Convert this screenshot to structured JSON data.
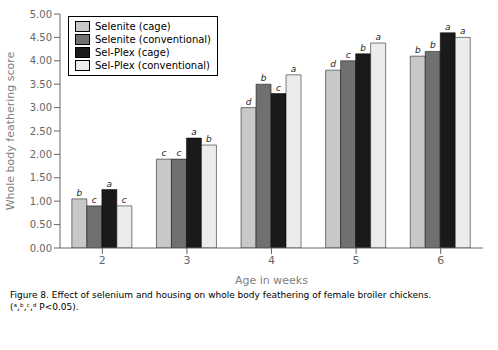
{
  "chart_data": {
    "type": "bar",
    "categories": [
      "2",
      "3",
      "4",
      "5",
      "6"
    ],
    "series": [
      {
        "name": "Selenite (cage)",
        "color": "#c8c8c8",
        "values": [
          1.05,
          1.9,
          3.0,
          3.8,
          4.1
        ],
        "annotations": [
          "b",
          "c",
          "d",
          "d",
          "b"
        ]
      },
      {
        "name": "Selenite (conventional)",
        "color": "#707070",
        "values": [
          0.9,
          1.9,
          3.5,
          4.0,
          4.2
        ],
        "annotations": [
          "c",
          "c",
          "b",
          "c",
          "b"
        ]
      },
      {
        "name": "Sel-Plex (cage)",
        "color": "#1a1a1a",
        "values": [
          1.25,
          2.35,
          3.3,
          4.15,
          4.6
        ],
        "annotations": [
          "a",
          "a",
          "c",
          "b",
          "a"
        ]
      },
      {
        "name": "Sel-Plex (conventional)",
        "color": "#ececec",
        "values": [
          0.9,
          2.2,
          3.7,
          4.38,
          4.5
        ],
        "annotations": [
          "c",
          "b",
          "a",
          "a",
          "a"
        ]
      }
    ],
    "xlabel": "Age in weeks",
    "ylabel": "Whole body feathering score",
    "ylim": [
      0,
      5.0
    ],
    "yticks": [
      {
        "value": 0.0,
        "label": "0.00"
      },
      {
        "value": 0.5,
        "label": "0.50"
      },
      {
        "value": 1.0,
        "label": "1.00"
      },
      {
        "value": 1.5,
        "label": "1.50"
      },
      {
        "value": 2.0,
        "label": "2.00"
      },
      {
        "value": 2.5,
        "label": "2.50"
      },
      {
        "value": 3.0,
        "label": "3.00"
      },
      {
        "value": 3.5,
        "label": "3.50"
      },
      {
        "value": 4.0,
        "label": "4.00"
      },
      {
        "value": 4.5,
        "label": "4.50"
      },
      {
        "value": 5.0,
        "label": "5.00"
      }
    ],
    "grid": false,
    "legend": "upper left",
    "caption": "Figure 8. Effect of selenium and housing on whole body feathering of female broiler chickens.\n(ᵃ,ᵇ,ᶜ,ᵈ P<0.05)."
  }
}
